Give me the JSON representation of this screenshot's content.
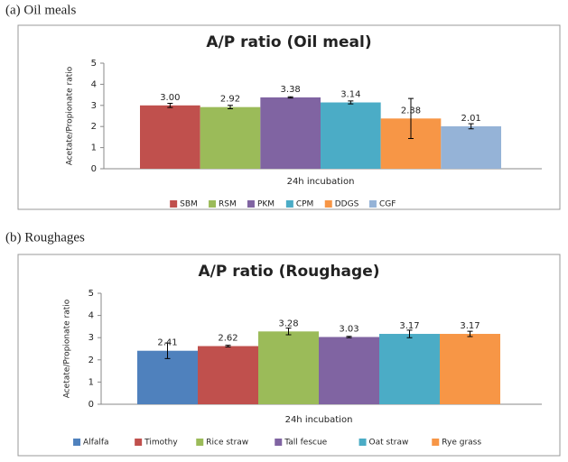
{
  "chart_data": [
    {
      "type": "bar",
      "label": "(a)  Oil  meals",
      "title": "A/P ratio (Oil meal)",
      "y_label": "Acetate/Propionate ratio",
      "categories": [
        "24h incubation"
      ],
      "ylim": [
        0,
        5
      ],
      "yticks": [
        0,
        1,
        2,
        3,
        4,
        5
      ],
      "series": [
        {
          "name": "SBM",
          "color": "#c0504d",
          "values": [
            3.0
          ],
          "value_labels": [
            "3.00"
          ],
          "errors": [
            0.1
          ]
        },
        {
          "name": "RSM",
          "color": "#9bbb59",
          "values": [
            2.92
          ],
          "value_labels": [
            "2.92"
          ],
          "errors": [
            0.08
          ]
        },
        {
          "name": "PKM",
          "color": "#8064a2",
          "values": [
            3.38
          ],
          "value_labels": [
            "3.38"
          ],
          "errors": [
            0.03
          ]
        },
        {
          "name": "CPM",
          "color": "#4bacc6",
          "values": [
            3.14
          ],
          "value_labels": [
            "3.14"
          ],
          "errors": [
            0.07
          ]
        },
        {
          "name": "DDGS",
          "color": "#f79646",
          "values": [
            2.38
          ],
          "value_labels": [
            "2.38"
          ],
          "errors": [
            0.95
          ]
        },
        {
          "name": "CGF",
          "color": "#95b3d7",
          "values": [
            2.01
          ],
          "value_labels": [
            "2.01"
          ],
          "errors": [
            0.12
          ]
        }
      ]
    },
    {
      "type": "bar",
      "label": "(b)  Roughages",
      "title": "A/P ratio (Roughage)",
      "y_label": "Acetate/Propionate ratio",
      "categories": [
        "24h incubation"
      ],
      "ylim": [
        0,
        5
      ],
      "yticks": [
        0,
        1,
        2,
        3,
        4,
        5
      ],
      "series": [
        {
          "name": "Alfalfa",
          "color": "#4f81bd",
          "values": [
            2.41
          ],
          "value_labels": [
            "2.41"
          ],
          "errors": [
            0.35
          ]
        },
        {
          "name": "Timothy",
          "color": "#c0504d",
          "values": [
            2.62
          ],
          "value_labels": [
            "2.62"
          ],
          "errors": [
            0.04
          ]
        },
        {
          "name": "Rice straw",
          "color": "#9bbb59",
          "values": [
            3.28
          ],
          "value_labels": [
            "3.28"
          ],
          "errors": [
            0.15
          ]
        },
        {
          "name": "Tall fescue",
          "color": "#8064a2",
          "values": [
            3.03
          ],
          "value_labels": [
            "3.03"
          ],
          "errors": [
            0.03
          ]
        },
        {
          "name": "Oat straw",
          "color": "#4bacc6",
          "values": [
            3.17
          ],
          "value_labels": [
            "3.17"
          ],
          "errors": [
            0.17
          ]
        },
        {
          "name": "Rye grass",
          "color": "#f79646",
          "values": [
            3.17
          ],
          "value_labels": [
            "3.17"
          ],
          "errors": [
            0.12
          ]
        }
      ]
    }
  ]
}
